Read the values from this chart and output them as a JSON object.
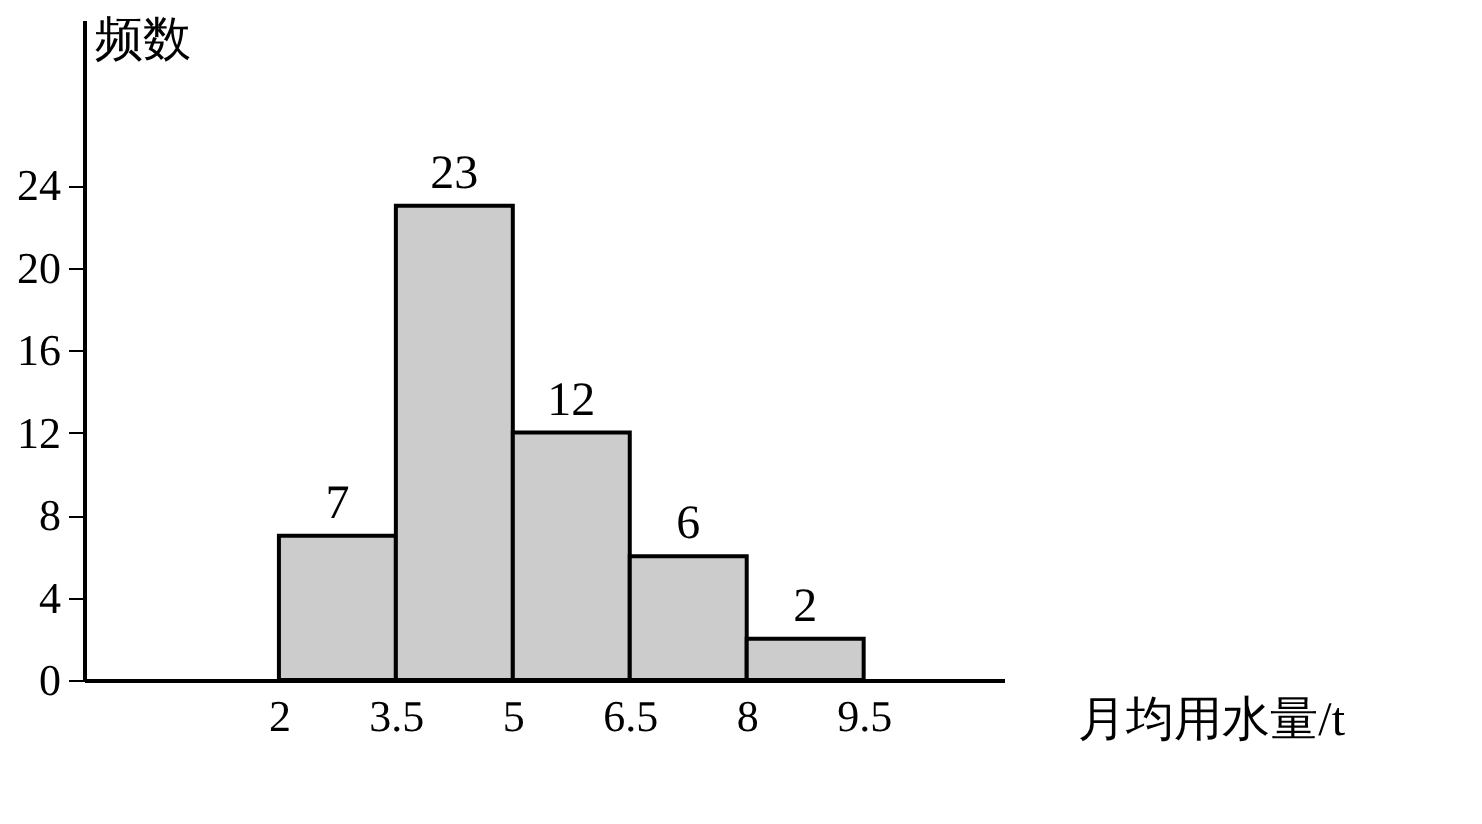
{
  "chart_data": {
    "type": "histogram",
    "xlabel": "月均用水量/t",
    "ylabel": "频数",
    "bins": [
      2,
      3.5,
      5,
      6.5,
      8,
      9.5
    ],
    "values": [
      7,
      23,
      12,
      6,
      2
    ],
    "color": "#cccccc",
    "xlim": [
      -0.5,
      11.3
    ],
    "xticks": [
      2,
      3.5,
      5,
      6.5,
      8,
      9.5
    ],
    "ylim": [
      0,
      32
    ],
    "yticks": [
      0,
      4,
      8,
      12,
      16,
      20,
      24
    ],
    "data_labels": true
  }
}
